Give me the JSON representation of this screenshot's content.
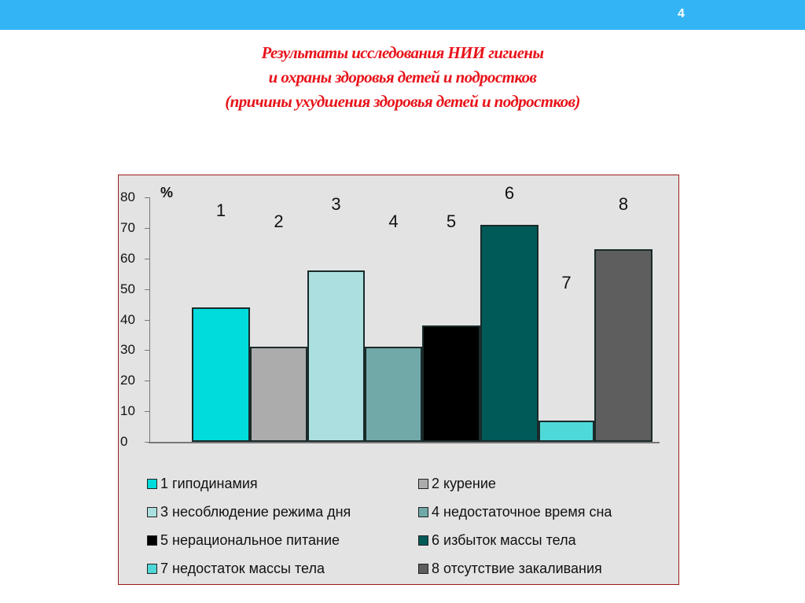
{
  "slide": {
    "number": "4",
    "title_lines": [
      "Результаты исследования НИИ гигиены",
      "и охраны здоровья детей и подростков",
      "(причины ухудшения здоровья детей и подростков)"
    ],
    "topbar_color": "#33b5f5",
    "title_color": "#e8131a"
  },
  "chart_data": {
    "type": "bar",
    "title": "Результаты исследования НИИ гигиены и охраны здоровья детей и подростков (причины ухудшения здоровья детей и подростков)",
    "xlabel": "",
    "ylabel": "%",
    "ylim": [
      0,
      80
    ],
    "yticks": [
      "0",
      "10",
      "20",
      "30",
      "40",
      "50",
      "60",
      "70",
      "80"
    ],
    "grid": false,
    "legend_position": "bottom",
    "categories": [
      "1",
      "2",
      "3",
      "4",
      "5",
      "6",
      "7",
      "8"
    ],
    "values": [
      44,
      31,
      56,
      31,
      38,
      71,
      7,
      63
    ],
    "colors": [
      "#00dcdc",
      "#acacac",
      "#ace0e0",
      "#71a9a9",
      "#000000",
      "#005a58",
      "#4fd8d8",
      "#5e5e5e"
    ],
    "legend": [
      "1 гиподинамия",
      "2 курение",
      "3 несоблюдение режима дня",
      "4 недостаточное время сна",
      "5 нерациональное питание",
      "6 избыток массы тела",
      "7 недостаток массы тела",
      "8 отсутствие закаливания"
    ]
  }
}
